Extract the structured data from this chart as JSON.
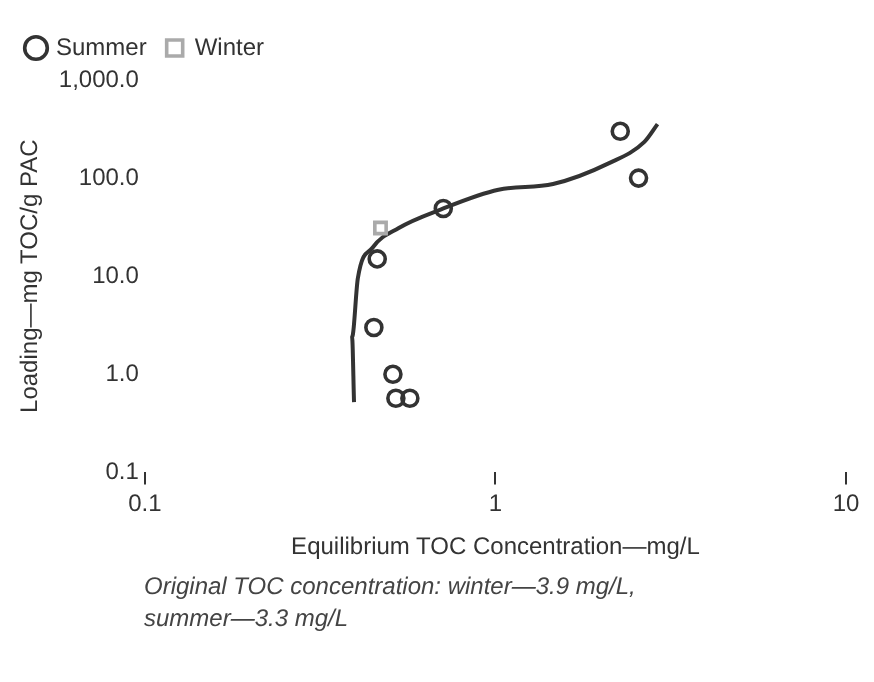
{
  "chart_data": {
    "type": "scatter",
    "xlabel": "Equilibrium TOC Concentration—mg/L",
    "ylabel": "Loading—mg TOC/g PAC",
    "log": "xy",
    "xlim": [
      0.1,
      10
    ],
    "xticks": [
      0.1,
      1,
      10
    ],
    "ylim": [
      0.1,
      1000
    ],
    "yticks": [
      {
        "value": 0.1,
        "label": "0.1"
      },
      {
        "value": 1,
        "label": "1.0"
      },
      {
        "value": 10,
        "label": "10.0"
      },
      {
        "value": 100,
        "label": "100.0"
      },
      {
        "value": 1000,
        "label": "1,000.0"
      }
    ],
    "grid": false,
    "legend": "top left",
    "marker": "circle",
    "series": [
      {
        "name": "Summer",
        "color": "#333333",
        "x": [
          2.27,
          2.56,
          0.45,
          0.51,
          0.52,
          0.57,
          0.71,
          0.46
        ],
        "values": [
          300,
          100,
          3.0,
          1.0,
          0.57,
          0.57,
          49,
          15
        ]
      },
      {
        "name": "Winter",
        "color": "#aaaaaa",
        "marker": "square",
        "x": [
          0.47
        ],
        "values": [
          31
        ]
      },
      {
        "type": "line",
        "color": "#333333",
        "marker": "none",
        "x": [
          0.395,
          0.39,
          0.405,
          0.446,
          0.53,
          0.7,
          1.02,
          1.46,
          2.11,
          2.66,
          2.9
        ],
        "values": [
          0.52,
          2.4,
          9.5,
          19.5,
          31,
          48,
          76,
          87,
          142,
          234,
          355
        ]
      }
    ],
    "annotations": [
      "Original TOC concentration: winter—3.9 mg/L, summer—3.3 mg/L"
    ]
  }
}
